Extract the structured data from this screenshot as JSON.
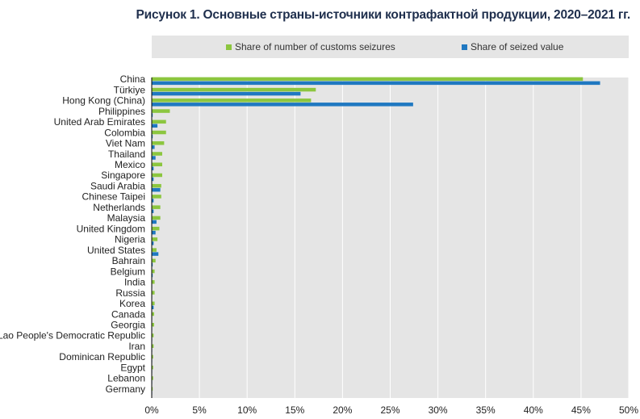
{
  "title": "Рисунок 1. Основные страны-источники контрафактной продукции, 2020–2021 гг.",
  "colors": {
    "seizures": "#8cc63f",
    "value": "#1f78c1",
    "plot_bg": "#e5e5e5",
    "grid": "#ffffff"
  },
  "chart_data": {
    "type": "bar",
    "orientation": "horizontal",
    "title": "Рисунок 1. Основные страны-источники контрафактной продукции, 2020–2021 гг.",
    "xlabel": "",
    "ylabel": "",
    "xlim": [
      0,
      50
    ],
    "x_ticks": [
      "0%",
      "5%",
      "10%",
      "15%",
      "20%",
      "25%",
      "30%",
      "35%",
      "40%",
      "45%",
      "50%"
    ],
    "grid": true,
    "legend_position": "top",
    "categories": [
      "China",
      "Türkiye",
      "Hong Kong (China)",
      "Philippines",
      "United Arab Emirates",
      "Colombia",
      "Viet Nam",
      "Thailand",
      "Mexico",
      "Singapore",
      "Saudi Arabia",
      "Chinese Taipei",
      "Netherlands",
      "Malaysia",
      "United Kingdom",
      "Nigeria",
      "United States",
      "Bahrain",
      "Belgium",
      "India",
      "Russia",
      "Korea",
      "Canada",
      "Georgia",
      "Lao People's Democratic Republic",
      "Iran",
      "Dominican Republic",
      "Egypt",
      "Lebanon",
      "Germany"
    ],
    "series": [
      {
        "name": "Share of number of customs seizures",
        "values": [
          45.2,
          17.2,
          16.7,
          1.9,
          1.5,
          1.5,
          1.3,
          1.1,
          1.1,
          1.1,
          1.0,
          1.0,
          0.9,
          0.9,
          0.8,
          0.6,
          0.5,
          0.4,
          0.3,
          0.3,
          0.3,
          0.3,
          0.25,
          0.25,
          0.2,
          0.2,
          0.15,
          0.15,
          0.15,
          0.1
        ]
      },
      {
        "name": "Share of seized value",
        "values": [
          47.0,
          15.6,
          27.4,
          0.1,
          0.6,
          0.1,
          0.3,
          0.4,
          0.2,
          0.2,
          0.9,
          0.2,
          0.2,
          0.5,
          0.4,
          0.2,
          0.7,
          0.1,
          0.1,
          0.05,
          0.05,
          0.2,
          0.05,
          0.05,
          0.05,
          0.05,
          0.05,
          0.05,
          0.05,
          0.05
        ]
      }
    ]
  }
}
